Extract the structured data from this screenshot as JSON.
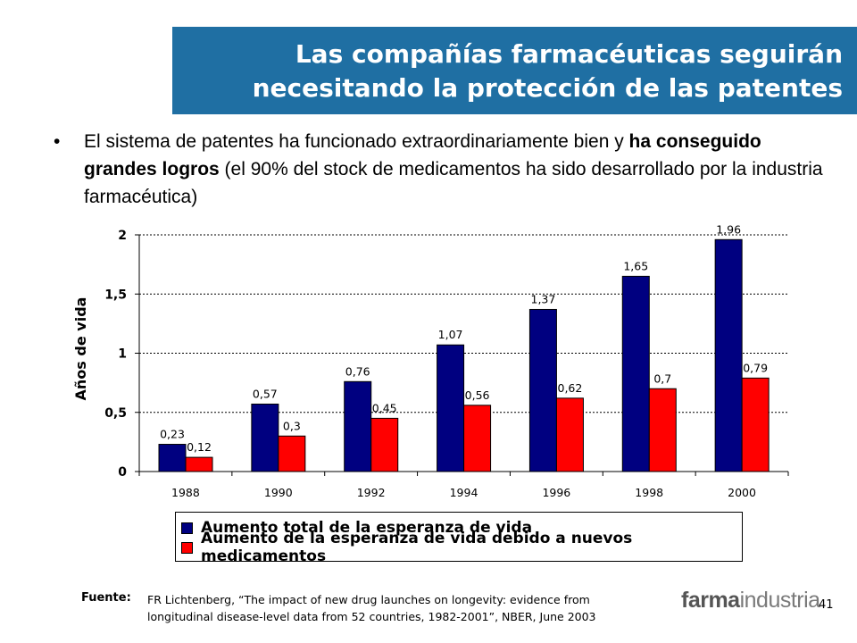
{
  "title": {
    "line1": "Las compañías farmacéuticas seguirán",
    "line2": "necesitando la protección de las patentes"
  },
  "bullet": {
    "marker": "•",
    "part1": "El sistema de patentes ha funcionado extraordinariamente bien y ",
    "bold": "ha conseguido grandes logros",
    "part2": " (el 90% del stock de medicamentos ha sido desarrollado por la industria farmacéutica)"
  },
  "chart_data": {
    "type": "bar",
    "categories": [
      "1988",
      "1990",
      "1992",
      "1994",
      "1996",
      "1998",
      "2000"
    ],
    "series": [
      {
        "name": "Aumento total de la esperanza de vida",
        "values": [
          0.23,
          0.57,
          0.76,
          1.07,
          1.37,
          1.65,
          1.96
        ],
        "labels": [
          "0,23",
          "0,57",
          "0,76",
          "1,07",
          "1,37",
          "1,65",
          "1,96"
        ],
        "color": "#000080"
      },
      {
        "name": "Aumento de la esperanza de vida debido a nuevos medicamentos",
        "values": [
          0.12,
          0.3,
          0.45,
          0.56,
          0.62,
          0.7,
          0.79
        ],
        "labels": [
          "0,12",
          "0,3",
          "0,45",
          "0,56",
          "0,62",
          "0,7",
          "0,79"
        ],
        "color": "#ff0000"
      }
    ],
    "ylabel": "Años de vida",
    "xlabel": "",
    "ylim": [
      0,
      2
    ],
    "yticks": [
      0,
      0.5,
      1,
      1.5,
      2
    ],
    "ytick_labels": [
      "0",
      "0,5",
      "1",
      "1,5",
      "2"
    ],
    "grid": true,
    "legend_position": "bottom"
  },
  "source": {
    "label": "Fuente:",
    "line1": "FR Lichtenberg, “The impact of new drug launches on longevity: evidence from",
    "line2": "longitudinal disease-level data from 52 countries, 1982-2001”, NBER, June 2003"
  },
  "logo": {
    "part1": "farma",
    "part2": "industria"
  },
  "page_number": "41"
}
